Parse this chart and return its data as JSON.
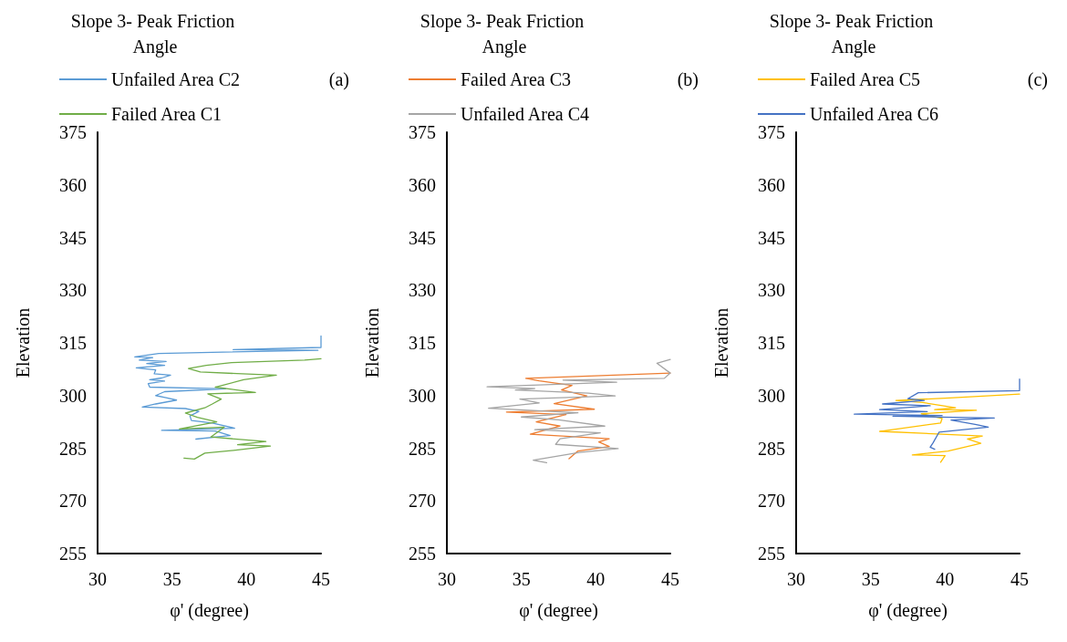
{
  "chart_data": [
    {
      "type": "line",
      "title": "Slope 3- Peak Friction Angle",
      "annotations": [
        "(a)"
      ],
      "xlabel": "φ' (degree)",
      "ylabel": "Elevation",
      "xlim": [
        30,
        45
      ],
      "xticks": [
        30,
        35,
        40,
        45
      ],
      "ylim": [
        255,
        375
      ],
      "yticks": [
        255,
        270,
        285,
        300,
        315,
        330,
        345,
        360,
        375
      ],
      "grid": false,
      "legend": "top left",
      "marker": "none",
      "line_style": "solid",
      "series": [
        {
          "name": "Unfailed Area C2",
          "color": "#5b9bd5",
          "x": [
            45,
            45,
            39.1,
            44.8,
            34.1,
            32.5,
            33.7,
            32.8,
            34.6,
            33.3,
            34.5,
            32.6,
            33.9,
            33.8,
            34.9,
            34.3,
            33.5,
            34.5,
            33.4,
            33.5,
            38.6,
            34.5,
            33.9,
            34.6,
            35.3,
            33.9,
            33.0,
            35.9,
            36.8,
            36.2,
            36.3,
            37.7,
            39.2,
            34.3,
            37.9,
            38.9,
            36.6
          ],
          "values": [
            317.0,
            313.7,
            313.1,
            312.9,
            312.0,
            311.0,
            310.8,
            310.1,
            309.7,
            309.1,
            308.6,
            307.9,
            307.3,
            306.2,
            305.8,
            305.0,
            304.5,
            304.1,
            303.4,
            302.4,
            301.9,
            301.1,
            300.0,
            299.4,
            298.7,
            297.6,
            296.7,
            296.3,
            295.5,
            294.2,
            292.9,
            292.2,
            290.7,
            290.1,
            289.9,
            288.6,
            287.6
          ]
        },
        {
          "name": "Failed Area C1",
          "color": "#70ad47",
          "x": [
            45,
            43.9,
            39.0,
            37.3,
            36.1,
            36.9,
            40.8,
            42.0,
            39.8,
            37.9,
            40.6,
            37.4,
            38.3,
            37.7,
            37.2,
            35.9,
            36.7,
            38.0,
            35.5,
            38.5,
            37.6,
            41.3,
            39.4,
            41.6,
            39.4,
            37.2,
            36.5,
            35.8
          ],
          "values": [
            310.5,
            310.1,
            309.4,
            308.6,
            307.7,
            306.7,
            306.0,
            305.8,
            304.5,
            302.4,
            300.9,
            300.5,
            299.0,
            297.6,
            296.5,
            295.0,
            293.8,
            292.5,
            290.5,
            291.0,
            288.2,
            286.9,
            286.0,
            285.6,
            284.5,
            283.6,
            281.9,
            282.2
          ]
        }
      ]
    },
    {
      "type": "line",
      "title": "Slope 3- Peak Friction Angle",
      "annotations": [
        "(b)"
      ],
      "xlabel": "φ' (degree)",
      "ylabel": "Elevation",
      "xlim": [
        30,
        45
      ],
      "xticks": [
        30,
        35,
        40,
        45
      ],
      "ylim": [
        255,
        375
      ],
      "yticks": [
        255,
        270,
        285,
        300,
        315,
        330,
        345,
        360,
        375
      ],
      "grid": false,
      "legend": "top left",
      "marker": "none",
      "line_style": "solid",
      "series": [
        {
          "name": "Failed Area C3",
          "color": "#ed7d31",
          "x": [
            45,
            35.3,
            36.2,
            38.4,
            37.7,
            39.4,
            37.2,
            39.9,
            34.0,
            38.0,
            36.0,
            37.6,
            35.6,
            40.9,
            40.2,
            40.9,
            38.8,
            38.2
          ],
          "values": [
            306.4,
            304.9,
            304.2,
            302.9,
            301.6,
            299.9,
            297.7,
            296.1,
            295.3,
            294.6,
            292.5,
            291.3,
            289.0,
            287.7,
            286.8,
            285.5,
            284.2,
            282.0
          ]
        },
        {
          "name": "Unfailed Area C4",
          "color": "#a5a5a5",
          "x": [
            45,
            44.1,
            45,
            44.6,
            37.8,
            41.4,
            32.7,
            35.9,
            34.6,
            39.5,
            41.3,
            34.9,
            36.2,
            32.8,
            38.8,
            35.0,
            37.5,
            40.6,
            35.9,
            40.3,
            37.6,
            37.3,
            41.5,
            38.9,
            35.8,
            36.7
          ],
          "values": [
            310.3,
            309.2,
            306.4,
            304.9,
            304.4,
            303.8,
            302.5,
            302.0,
            301.6,
            300.7,
            299.9,
            299.0,
            297.9,
            296.4,
            295.1,
            293.9,
            293.1,
            291.3,
            290.3,
            289.4,
            287.7,
            286.1,
            284.9,
            283.8,
            281.6,
            280.9
          ]
        }
      ]
    },
    {
      "type": "line",
      "title": "Slope 3- Peak Friction Angle",
      "annotations": [
        "(c)"
      ],
      "xlabel": "φ' (degree)",
      "ylabel": "Elevation",
      "xlim": [
        30,
        45
      ],
      "xticks": [
        30,
        35,
        40,
        45
      ],
      "ylim": [
        255,
        375
      ],
      "yticks": [
        255,
        270,
        285,
        300,
        315,
        330,
        345,
        360,
        375
      ],
      "grid": false,
      "legend": "top left",
      "marker": "none",
      "line_style": "solid",
      "series": [
        {
          "name": "Failed Area C5",
          "color": "#ffc000",
          "x": [
            45,
            40.3,
            36.7,
            38.5,
            40.7,
            39.3,
            42.1,
            38.4,
            39.8,
            39.7,
            35.6,
            42.5,
            41.5,
            42.4,
            40.2,
            37.8,
            40.0,
            39.7
          ],
          "values": [
            300.4,
            299.3,
            298.6,
            298.0,
            296.5,
            296.0,
            295.8,
            294.8,
            293.5,
            292.2,
            289.8,
            288.5,
            287.6,
            286.4,
            284.2,
            283.1,
            282.9,
            281.0
          ]
        },
        {
          "name": "Unfailed Area C6",
          "color": "#4472c4",
          "x": [
            45,
            45,
            38.2,
            37.5,
            38.6,
            35.8,
            39.0,
            35.6,
            38.8,
            33.9,
            39.8,
            36.5,
            43.3,
            40.4,
            42.1,
            42.9,
            39.6,
            39.2,
            39.0,
            39.3
          ],
          "values": [
            304.7,
            301.4,
            300.8,
            299.1,
            298.6,
            297.6,
            297.1,
            296.0,
            295.4,
            294.7,
            294.3,
            294.1,
            293.6,
            293.0,
            291.7,
            291.0,
            289.6,
            286.6,
            285.3,
            284.7
          ]
        }
      ]
    }
  ]
}
